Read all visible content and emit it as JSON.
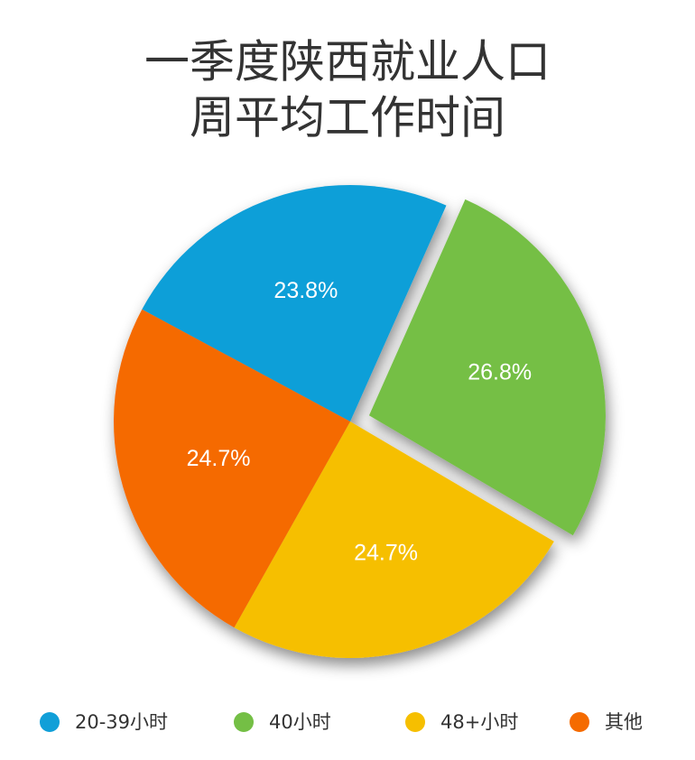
{
  "chart_data": {
    "type": "pie",
    "title": [
      "一季度陕西就业人口",
      "周平均工作时间"
    ],
    "categories": [
      "20-39小时",
      "40小时",
      "48+小时",
      "其他"
    ],
    "values": [
      23.8,
      26.8,
      24.7,
      24.7
    ],
    "value_labels": [
      "23.8%",
      "26.8%",
      "24.7%",
      "24.7%"
    ],
    "colors": [
      "#119fd8",
      "#74bf45",
      "#f6bf00",
      "#f56b00"
    ]
  }
}
